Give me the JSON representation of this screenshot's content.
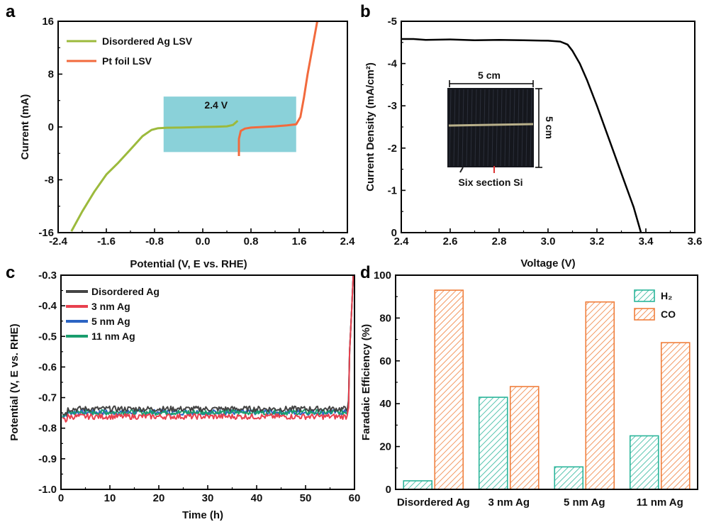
{
  "chart_data": [
    {
      "panel": "a",
      "type": "line",
      "xlabel": "Potential (V, E vs. RHE)",
      "ylabel": "Current (mA)",
      "xlim": [
        -2.4,
        2.4
      ],
      "ylim": [
        -16,
        16
      ],
      "xticks": [
        -2.4,
        -1.6,
        -0.8,
        0.0,
        0.8,
        1.6,
        2.4
      ],
      "yticks": [
        -16,
        -8,
        0,
        8,
        16
      ],
      "legend_position": "top-left",
      "series": [
        {
          "name": "Disordered Ag LSV",
          "color": "#9cba3c",
          "x": [
            -2.18,
            -2.0,
            -1.8,
            -1.6,
            -1.4,
            -1.2,
            -1.0,
            -0.85,
            -0.75,
            -0.6,
            -0.4,
            -0.2,
            0.0,
            0.2,
            0.4,
            0.5,
            0.58
          ],
          "y": [
            -15.8,
            -12.8,
            -9.8,
            -7.2,
            -5.4,
            -3.4,
            -1.4,
            -0.45,
            -0.2,
            -0.12,
            -0.1,
            -0.05,
            0.0,
            0.03,
            0.1,
            0.3,
            0.95
          ]
        },
        {
          "name": "Pt foil LSV",
          "color": "#f26a3d",
          "x": [
            0.6,
            0.6,
            0.63,
            0.7,
            0.8,
            1.0,
            1.2,
            1.4,
            1.55,
            1.62,
            1.68,
            1.74,
            1.8,
            1.86,
            1.9
          ],
          "y": [
            -4.4,
            -1.8,
            -0.6,
            -0.25,
            -0.1,
            0.0,
            0.1,
            0.25,
            0.4,
            1.5,
            4.5,
            8.0,
            11.0,
            14.0,
            16.0
          ]
        }
      ],
      "annotation": {
        "text": "2.4 V",
        "box_x": [
          -0.65,
          1.55
        ],
        "box_y": [
          -3.8,
          4.6
        ],
        "box_color": "#76c9d2"
      }
    },
    {
      "panel": "b",
      "type": "line",
      "xlabel": "Voltage (V)",
      "ylabel": "Current Density (mA/cm²)",
      "xlim": [
        2.4,
        3.6
      ],
      "ylim": [
        0,
        -5
      ],
      "xticks": [
        2.4,
        2.6,
        2.8,
        3.0,
        3.2,
        3.4,
        3.6
      ],
      "yticks": [
        -5,
        -4,
        -3,
        -2,
        -1,
        0
      ],
      "series": [
        {
          "name": "",
          "color": "#000000",
          "x": [
            2.4,
            2.45,
            2.5,
            2.6,
            2.7,
            2.8,
            2.9,
            3.0,
            3.05,
            3.08,
            3.1,
            3.13,
            3.16,
            3.2,
            3.25,
            3.3,
            3.35,
            3.38
          ],
          "y": [
            -4.58,
            -4.58,
            -4.56,
            -4.57,
            -4.55,
            -4.56,
            -4.55,
            -4.54,
            -4.52,
            -4.45,
            -4.3,
            -4.0,
            -3.6,
            -3.0,
            -2.2,
            -1.4,
            -0.6,
            0.0
          ]
        }
      ],
      "inset": {
        "width_label": "5 cm",
        "height_label": "5 cm",
        "caption": "Six section Si"
      }
    },
    {
      "panel": "c",
      "type": "line",
      "xlabel": "Time (h)",
      "ylabel": "Potential (V, E vs. RHE)",
      "xlim": [
        0,
        60
      ],
      "ylim": [
        -1.0,
        -0.3
      ],
      "xticks": [
        0,
        10,
        20,
        30,
        40,
        50,
        60
      ],
      "yticks": [
        -1.0,
        -0.9,
        -0.8,
        -0.7,
        -0.6,
        -0.5,
        -0.4,
        -0.3
      ],
      "legend_position": "top-left",
      "series": [
        {
          "name": "Disordered Ag",
          "color": "#444444",
          "level": -0.737
        },
        {
          "name": "3 nm Ag",
          "color": "#e8404e",
          "level": -0.762
        },
        {
          "name": "5 nm Ag",
          "color": "#2b64c3",
          "level": -0.748
        },
        {
          "name": "11 nm Ag",
          "color": "#1a9e6e",
          "level": -0.748
        }
      ],
      "end_time": 58.5
    },
    {
      "panel": "d",
      "type": "bar",
      "ylabel": "Faradaic Efficiency (%)",
      "ylim": [
        0,
        100
      ],
      "yticks": [
        0,
        20,
        40,
        60,
        80,
        100
      ],
      "legend_position": "top-right",
      "categories": [
        "Disordered Ag",
        "3 nm Ag",
        "5 nm Ag",
        "11 nm Ag"
      ],
      "series": [
        {
          "name": "H₂",
          "color": "#2bb59a",
          "values": [
            4,
            43,
            10.5,
            25
          ]
        },
        {
          "name": "CO",
          "color": "#f07f3c",
          "values": [
            93,
            48,
            87.5,
            68.5
          ]
        }
      ]
    }
  ],
  "panel_labels": [
    "a",
    "b",
    "c",
    "d"
  ]
}
